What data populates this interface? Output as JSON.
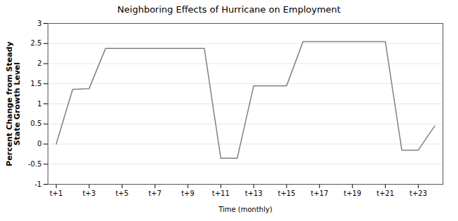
{
  "chart_data": {
    "type": "line",
    "title": "Neighboring Effects of Hurricane on Employment",
    "xlabel": "Time (monthly)",
    "ylabel": "Percent Change from Steady\nState Growth Level",
    "x": [
      1,
      2,
      3,
      4,
      5,
      6,
      7,
      8,
      9,
      10,
      11,
      12,
      13,
      14,
      15,
      16,
      17,
      18,
      19,
      20,
      21,
      22,
      23,
      24
    ],
    "values": [
      0.0,
      1.36,
      1.38,
      2.38,
      2.38,
      2.38,
      2.38,
      2.38,
      2.38,
      2.38,
      -0.35,
      -0.35,
      1.45,
      1.45,
      1.45,
      2.55,
      2.55,
      2.55,
      2.55,
      2.55,
      2.55,
      -0.15,
      -0.15,
      0.45
    ],
    "color": "#808080",
    "xlim": [
      0.5,
      24.5
    ],
    "xticks": [
      {
        "value": 1,
        "label": "t+1"
      },
      {
        "value": 3,
        "label": "t+3"
      },
      {
        "value": 5,
        "label": "t+5"
      },
      {
        "value": 7,
        "label": "t+7"
      },
      {
        "value": 9,
        "label": "t+9"
      },
      {
        "value": 11,
        "label": "t+11"
      },
      {
        "value": 13,
        "label": "t+13"
      },
      {
        "value": 15,
        "label": "t+15"
      },
      {
        "value": 17,
        "label": "t+17"
      },
      {
        "value": 19,
        "label": "t+19"
      },
      {
        "value": 21,
        "label": "t+21"
      },
      {
        "value": 23,
        "label": "t+23"
      }
    ],
    "ylim": [
      -1,
      3
    ],
    "yticks": [
      -1,
      -0.5,
      0,
      0.5,
      1,
      1.5,
      2,
      2.5,
      3
    ],
    "grid": true
  }
}
